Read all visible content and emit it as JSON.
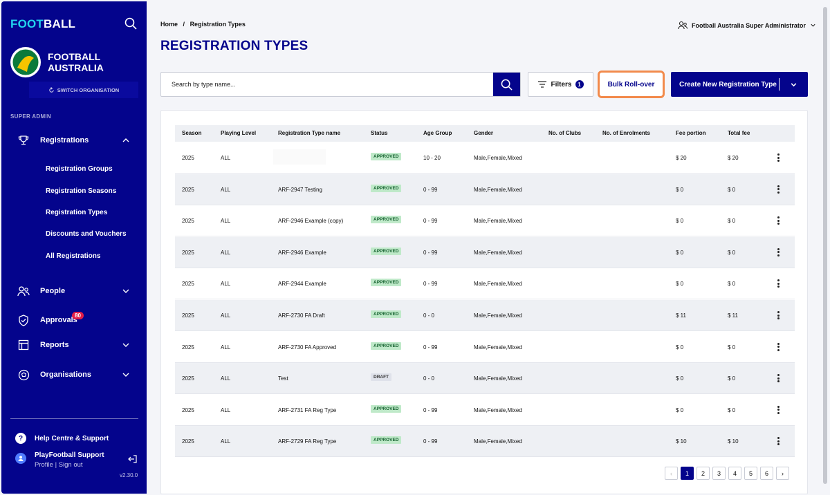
{
  "sidebar": {
    "brand_part1": "FOOT",
    "brand_part2": "BALL",
    "org_line1": "FOOTBALL",
    "org_line2": "AUSTRALIA",
    "switch_org": "SWITCH ORGANISATION",
    "section": "SUPER ADMIN",
    "registrations": "Registrations",
    "sub_items": [
      "Registration Groups",
      "Registration Seasons",
      "Registration Types",
      "Discounts and Vouchers",
      "All Registrations"
    ],
    "people": "People",
    "approvals": "Approvals",
    "approvals_badge": "80",
    "reports": "Reports",
    "organisations": "Organisations",
    "help": "Help Centre & Support",
    "user_name": "PlayFootball Support",
    "profile": "Profile",
    "sign_out": "Sign out",
    "version": "v2.30.0"
  },
  "header": {
    "breadcrumb_home": "Home",
    "breadcrumb_sep": "/",
    "breadcrumb_current": "Registration Types",
    "user_role": "Football Australia Super Administrator",
    "title": "REGISTRATION TYPES"
  },
  "toolbar": {
    "search_placeholder": "Search by type name...",
    "filters_label": "Filters",
    "filters_count": "1",
    "bulk_label": "Bulk Roll-over",
    "create_label": "Create New Registration Type"
  },
  "table": {
    "headers": [
      "Season",
      "Playing Level",
      "Registration Type name",
      "Status",
      "Age Group",
      "Gender",
      "No. of Clubs",
      "No. of Enrolments",
      "Fee portion",
      "Total fee"
    ],
    "rows": [
      {
        "season": "2025",
        "level": "ALL",
        "name": "",
        "status": "APPROVED",
        "age": "10 - 20",
        "gender": "Male,Female,Mixed",
        "clubs": "",
        "enrolments": "",
        "fee": "$ 20",
        "total": "$ 20"
      },
      {
        "season": "2025",
        "level": "ALL",
        "name": "ARF-2947 Testing",
        "status": "APPROVED",
        "age": "0 - 99",
        "gender": "Male,Female,Mixed",
        "clubs": "",
        "enrolments": "",
        "fee": "$ 0",
        "total": "$ 0"
      },
      {
        "season": "2025",
        "level": "ALL",
        "name": "ARF-2946 Example (copy)",
        "status": "APPROVED",
        "age": "0 - 99",
        "gender": "Male,Female,Mixed",
        "clubs": "",
        "enrolments": "",
        "fee": "$ 0",
        "total": "$ 0"
      },
      {
        "season": "2025",
        "level": "ALL",
        "name": "ARF-2946 Example",
        "status": "APPROVED",
        "age": "0 - 99",
        "gender": "Male,Female,Mixed",
        "clubs": "",
        "enrolments": "",
        "fee": "$ 0",
        "total": "$ 0"
      },
      {
        "season": "2025",
        "level": "ALL",
        "name": "ARF-2944 Example",
        "status": "APPROVED",
        "age": "0 - 99",
        "gender": "Male,Female,Mixed",
        "clubs": "",
        "enrolments": "",
        "fee": "$ 0",
        "total": "$ 0"
      },
      {
        "season": "2025",
        "level": "ALL",
        "name": "ARF-2730 FA Draft",
        "status": "APPROVED",
        "age": "0 - 0",
        "gender": "Male,Female,Mixed",
        "clubs": "",
        "enrolments": "",
        "fee": "$ 11",
        "total": "$ 11"
      },
      {
        "season": "2025",
        "level": "ALL",
        "name": "ARF-2730 FA Approved",
        "status": "APPROVED",
        "age": "0 - 99",
        "gender": "Male,Female,Mixed",
        "clubs": "",
        "enrolments": "",
        "fee": "$ 0",
        "total": "$ 0"
      },
      {
        "season": "2025",
        "level": "ALL",
        "name": "Test",
        "status": "DRAFT",
        "age": "0 - 0",
        "gender": "Male,Female,Mixed",
        "clubs": "",
        "enrolments": "",
        "fee": "$ 0",
        "total": "$ 0"
      },
      {
        "season": "2025",
        "level": "ALL",
        "name": "ARF-2731 FA Reg Type",
        "status": "APPROVED",
        "age": "0 - 99",
        "gender": "Male,Female,Mixed",
        "clubs": "",
        "enrolments": "",
        "fee": "$ 0",
        "total": "$ 0"
      },
      {
        "season": "2025",
        "level": "ALL",
        "name": "ARF-2729 FA Reg Type",
        "status": "APPROVED",
        "age": "0 - 99",
        "gender": "Male,Female,Mixed",
        "clubs": "",
        "enrolments": "",
        "fee": "$ 10",
        "total": "$ 10"
      }
    ]
  },
  "pagination": {
    "prev": "‹",
    "pages": [
      "1",
      "2",
      "3",
      "4",
      "5",
      "6"
    ],
    "active": "1",
    "next": "›"
  },
  "colors": {
    "primary": "#04048c",
    "accent": "#22d3ee",
    "highlight": "#f28a4b",
    "approved_bg": "#bfe9c9",
    "badge": "#e11d48"
  }
}
